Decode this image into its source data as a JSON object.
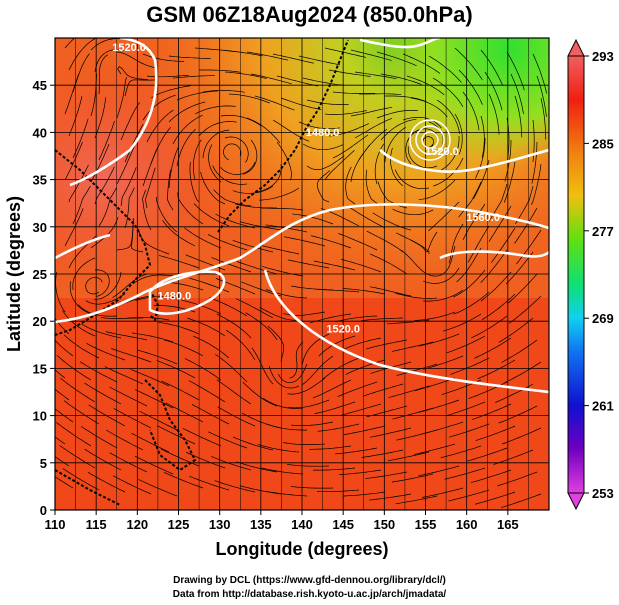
{
  "title": "GSM 06Z18Aug2024 (850.0hPa)",
  "x_axis": {
    "label": "Longitude (degrees)",
    "ticks": [
      "110",
      "115",
      "120",
      "125",
      "130",
      "135",
      "140",
      "145",
      "150",
      "155",
      "160",
      "165"
    ],
    "range": [
      110,
      170
    ]
  },
  "y_axis": {
    "label": "Latitude (degrees)",
    "ticks": [
      "0",
      "5",
      "10",
      "15",
      "20",
      "25",
      "30",
      "35",
      "40",
      "45"
    ],
    "range": [
      0,
      50
    ]
  },
  "colorbar": {
    "ticks": [
      "293",
      "285",
      "277",
      "269",
      "261",
      "253"
    ],
    "min": 253,
    "max": 293,
    "colors": [
      "#e040e0",
      "#7000c0",
      "#1010d0",
      "#1070f0",
      "#10d0f0",
      "#10e070",
      "#50e010",
      "#c0e010",
      "#f0c010",
      "#f07010",
      "#f02010",
      "#f06060"
    ]
  },
  "contour_labels": [
    {
      "text": "1480.0",
      "lon": 142.5,
      "lat": 39.6
    },
    {
      "text": "1520.0",
      "lon": 157.0,
      "lat": 37.6
    },
    {
      "text": "1560.0",
      "lon": 162.0,
      "lat": 30.6
    },
    {
      "text": "1480.0",
      "lon": 124.5,
      "lat": 22.3
    },
    {
      "text": "1520.0",
      "lon": 145.0,
      "lat": 18.8
    },
    {
      "text": "1520.0",
      "lon": 119.0,
      "lat": 48.6
    }
  ],
  "credits": {
    "line1": "Drawing by DCL (https://www.gfd-dennou.org/library/dcl/)",
    "line2": "Data from http://database.rish.kyoto-u.ac.jp/arch/jmadata/"
  }
}
